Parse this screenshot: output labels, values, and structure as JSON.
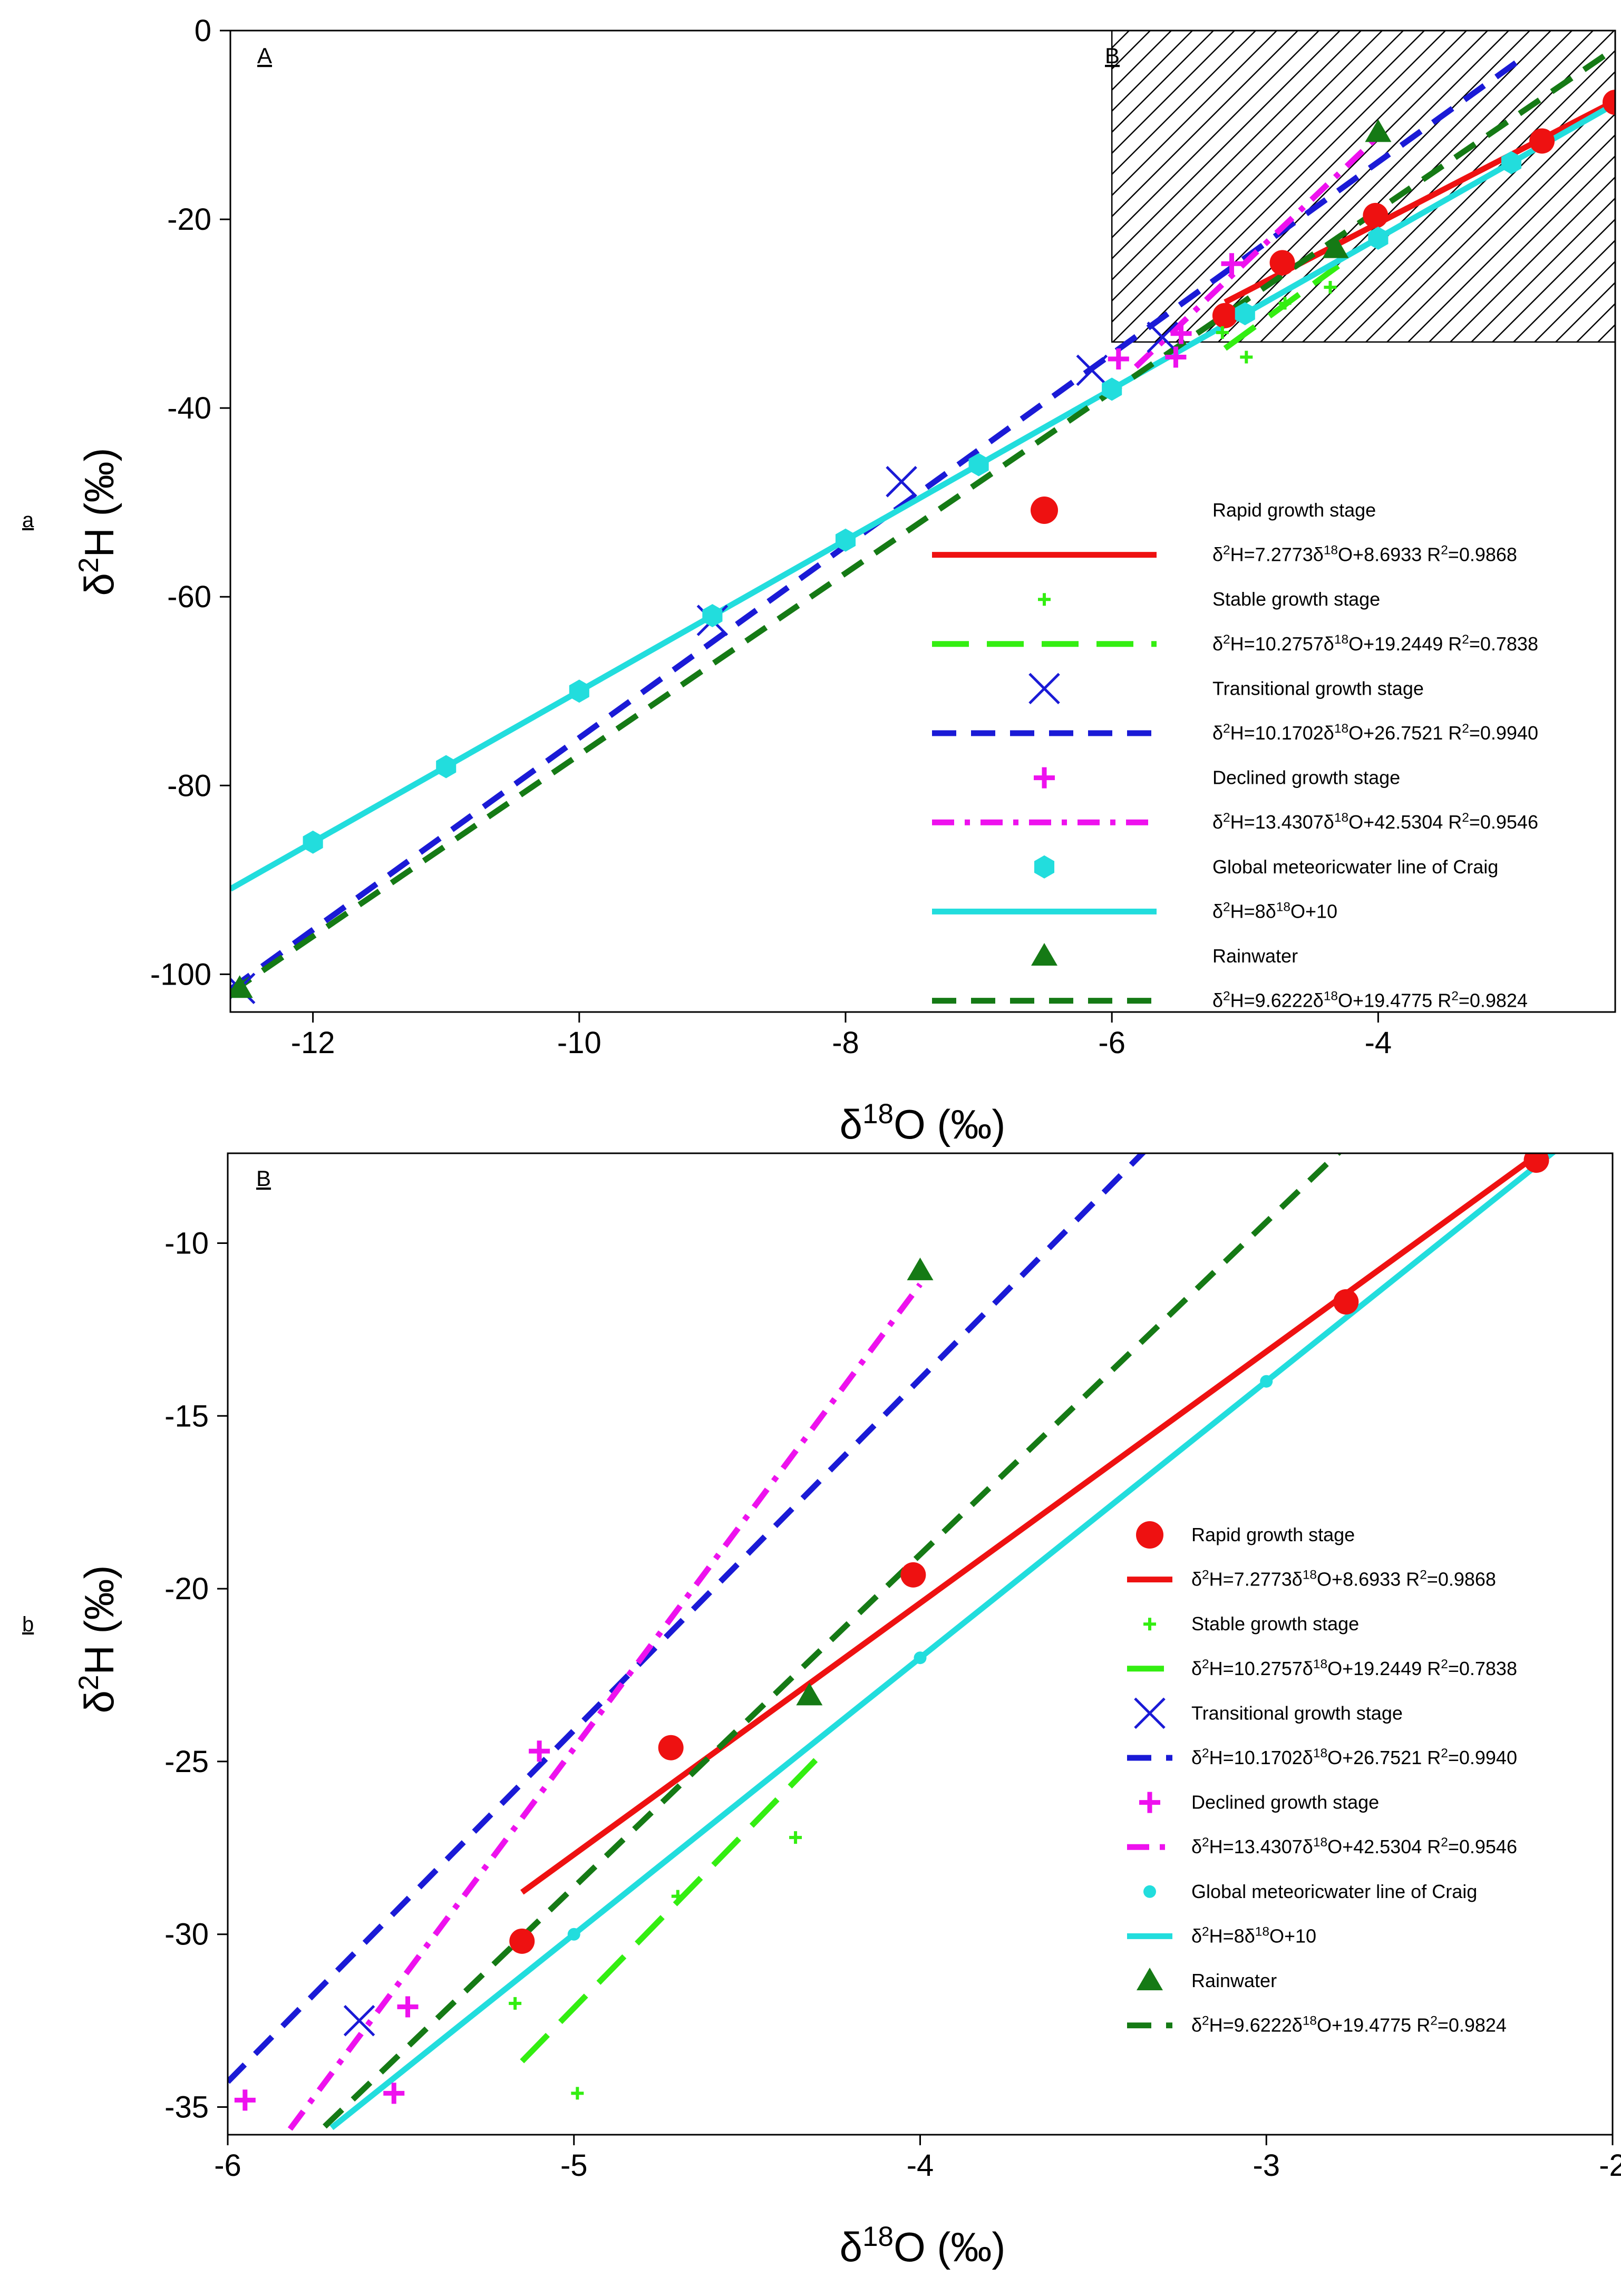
{
  "chart_data": [
    {
      "type": "scatter",
      "panel_tag": "a",
      "region_labels": [
        "A",
        "B"
      ],
      "xlabel": {
        "main": "δ",
        "sup": "18",
        "tail": "O (‰)"
      },
      "ylabel": {
        "main": "δ",
        "sup": "2",
        "tail": "H (‰)"
      },
      "xlim": [
        -12.62,
        -2.22
      ],
      "ylim": [
        -104,
        0
      ],
      "xticks": [
        -12,
        -10,
        -8,
        -6,
        -4
      ],
      "yticks": [
        -100,
        -80,
        -60,
        -40,
        -20,
        0
      ],
      "highlight_region": {
        "label": "B",
        "x": [
          -6,
          -2.22
        ],
        "y": [
          -33,
          0
        ],
        "pattern": "hatched"
      },
      "legend_placement": "lower-right",
      "series": [
        {
          "name": "Rapid growth stage",
          "kind": "points",
          "marker": "circle",
          "color": "#ee1111",
          "points": [
            [
              -5.15,
              -30.2
            ],
            [
              -4.72,
              -24.6
            ],
            [
              -4.02,
              -19.6
            ],
            [
              -2.77,
              -11.7
            ],
            [
              -2.22,
              -7.6
            ]
          ]
        },
        {
          "name": "δ2H=7.2773δ18O+8.6933 R2=0.9868",
          "kind": "line",
          "color": "#ee1111",
          "dash": "solid",
          "slope": 7.2773,
          "intercept": 8.6933,
          "xrange": [
            -5.15,
            -2.22
          ],
          "label_parts": [
            [
              "t",
              "δ"
            ],
            [
              "sup",
              "2"
            ],
            [
              "t",
              "H=7.2773δ"
            ],
            [
              "sup",
              "18"
            ],
            [
              "t",
              "O+8.6933 R"
            ],
            [
              "sup",
              "2"
            ],
            [
              "t",
              "=0.9868"
            ]
          ]
        },
        {
          "name": "Stable growth stage",
          "kind": "points",
          "marker": "small-plus",
          "color": "#33ee11",
          "points": [
            [
              -5.17,
              -32
            ],
            [
              -4.99,
              -34.6
            ],
            [
              -4.7,
              -28.9
            ],
            [
              -4.36,
              -27.2
            ]
          ]
        },
        {
          "name": "δ2H=10.2757δ18O+19.2449 R2=0.7838",
          "kind": "line",
          "color": "#33ee11",
          "dash": "longdash",
          "slope": 10.2757,
          "intercept": 19.2449,
          "xrange": [
            -5.15,
            -4.3
          ],
          "label_parts": [
            [
              "t",
              "δ"
            ],
            [
              "sup",
              "2"
            ],
            [
              "t",
              "H=10.2757δ"
            ],
            [
              "sup",
              "18"
            ],
            [
              "t",
              "O+19.2449 R"
            ],
            [
              "sup",
              "2"
            ],
            [
              "t",
              "=0.7838"
            ]
          ]
        },
        {
          "name": "Transitional growth stage",
          "kind": "points",
          "marker": "x",
          "color": "#1a1ad6",
          "points": [
            [
              -12.55,
              -101.5
            ],
            [
              -9.0,
              -62.5
            ],
            [
              -7.58,
              -47.8
            ],
            [
              -6.15,
              -36.0
            ],
            [
              -5.62,
              -32.5
            ]
          ]
        },
        {
          "name": "δ2H=10.1702δ18O+26.7521 R2=0.9940",
          "kind": "line",
          "color": "#1a1ad6",
          "dash": "dash",
          "slope": 10.1702,
          "intercept": 26.7521,
          "xrange": [
            -12.62,
            -2.9
          ],
          "label_parts": [
            [
              "t",
              "δ"
            ],
            [
              "sup",
              "2"
            ],
            [
              "t",
              "H=10.1702δ"
            ],
            [
              "sup",
              "18"
            ],
            [
              "t",
              "O+26.7521 R"
            ],
            [
              "sup",
              "2"
            ],
            [
              "t",
              "=0.9940"
            ]
          ]
        },
        {
          "name": "Declined growth stage",
          "kind": "points",
          "marker": "plus",
          "color": "#ee11ee",
          "points": [
            [
              -5.95,
              -34.8
            ],
            [
              -5.52,
              -34.6
            ],
            [
              -5.48,
              -32.1
            ],
            [
              -5.1,
              -24.7
            ]
          ]
        },
        {
          "name": "δ2H=13.4307δ18O+42.5304 R2=0.9546",
          "kind": "line",
          "color": "#ee11ee",
          "dash": "dashdot",
          "slope": 13.4307,
          "intercept": 42.5304,
          "xrange": [
            -5.82,
            -4.0
          ],
          "label_parts": [
            [
              "t",
              "δ"
            ],
            [
              "sup",
              "2"
            ],
            [
              "t",
              "H=13.4307δ"
            ],
            [
              "sup",
              "18"
            ],
            [
              "t",
              "O+42.5304 R"
            ],
            [
              "sup",
              "2"
            ],
            [
              "t",
              "=0.9546"
            ]
          ]
        },
        {
          "name": "Global meteoricwater line of Craig",
          "kind": "points",
          "marker": "hexagon",
          "color": "#22dddd",
          "points": [
            [
              -12,
              -86
            ],
            [
              -11,
              -78
            ],
            [
              -10,
              -70
            ],
            [
              -9,
              -62
            ],
            [
              -8,
              -54
            ],
            [
              -7,
              -46
            ],
            [
              -6,
              -38
            ],
            [
              -5,
              -30
            ],
            [
              -4,
              -22
            ],
            [
              -3,
              -14
            ]
          ]
        },
        {
          "name": "δ2H=8δ18O+10",
          "kind": "line",
          "color": "#22dddd",
          "dash": "solid",
          "slope": 8,
          "intercept": 10,
          "xrange": [
            -12.62,
            -2.22
          ],
          "label_parts": [
            [
              "t",
              "δ"
            ],
            [
              "sup",
              "2"
            ],
            [
              "t",
              "H=8δ"
            ],
            [
              "sup",
              "18"
            ],
            [
              "t",
              "O+10"
            ]
          ]
        },
        {
          "name": "Rainwater",
          "kind": "points",
          "marker": "triangle",
          "color": "#157a15",
          "points": [
            [
              -12.55,
              -101.5
            ],
            [
              -4.32,
              -23.1
            ],
            [
              -4.0,
              -10.8
            ]
          ]
        },
        {
          "name": "δ2H=9.6222δ18O+19.4775 R2=0.9824",
          "kind": "line",
          "color": "#157a15",
          "dash": "dash",
          "slope": 9.6222,
          "intercept": 19.4775,
          "xrange": [
            -12.62,
            -2.22
          ],
          "label_parts": [
            [
              "t",
              "δ"
            ],
            [
              "sup",
              "2"
            ],
            [
              "t",
              "H=9.6222δ"
            ],
            [
              "sup",
              "18"
            ],
            [
              "t",
              "O+19.4775 R"
            ],
            [
              "sup",
              "2"
            ],
            [
              "t",
              "=0.9824"
            ]
          ]
        }
      ]
    },
    {
      "type": "scatter",
      "panel_tag": "b",
      "region_labels": [
        "B"
      ],
      "xlabel": {
        "main": "δ",
        "sup": "18",
        "tail": "O (‰)"
      },
      "ylabel": {
        "main": "δ",
        "sup": "2",
        "tail": "H (‰)"
      },
      "xlim": [
        -6,
        -2
      ],
      "ylim": [
        -35.8,
        -7.4
      ],
      "xticks": [
        -6,
        -5,
        -4,
        -3,
        -2
      ],
      "yticks": [
        -35,
        -30,
        -25,
        -20,
        -15,
        -10
      ],
      "legend_placement": "lower-right",
      "series": [
        {
          "name": "Rapid growth stage",
          "kind": "points",
          "marker": "circle",
          "color": "#ee1111",
          "points": [
            [
              -5.15,
              -30.2
            ],
            [
              -4.72,
              -24.6
            ],
            [
              -4.02,
              -19.6
            ],
            [
              -2.77,
              -11.7
            ],
            [
              -2.22,
              -7.6
            ]
          ]
        },
        {
          "name": "δ2H=7.2773δ18O+8.6933 R2=0.9868",
          "kind": "line",
          "color": "#ee1111",
          "dash": "solid",
          "slope": 7.2773,
          "intercept": 8.6933,
          "xrange": [
            -5.15,
            -2.22
          ],
          "label_parts": [
            [
              "t",
              "δ"
            ],
            [
              "sup",
              "2"
            ],
            [
              "t",
              "H=7.2773δ"
            ],
            [
              "sup",
              "18"
            ],
            [
              "t",
              "O+8.6933 R"
            ],
            [
              "sup",
              "2"
            ],
            [
              "t",
              "=0.9868"
            ]
          ]
        },
        {
          "name": "Stable growth stage",
          "kind": "points",
          "marker": "small-plus",
          "color": "#33ee11",
          "points": [
            [
              -5.17,
              -32
            ],
            [
              -4.99,
              -34.6
            ],
            [
              -4.7,
              -28.9
            ],
            [
              -4.36,
              -27.2
            ]
          ]
        },
        {
          "name": "δ2H=10.2757δ18O+19.2449 R2=0.7838",
          "kind": "line",
          "color": "#33ee11",
          "dash": "longdash",
          "slope": 10.2757,
          "intercept": 19.2449,
          "xrange": [
            -5.15,
            -4.3
          ],
          "label_parts": [
            [
              "t",
              "δ"
            ],
            [
              "sup",
              "2"
            ],
            [
              "t",
              "H=10.2757δ"
            ],
            [
              "sup",
              "18"
            ],
            [
              "t",
              "O+19.2449 R"
            ],
            [
              "sup",
              "2"
            ],
            [
              "t",
              "=0.7838"
            ]
          ]
        },
        {
          "name": "Transitional growth stage",
          "kind": "points",
          "marker": "x",
          "color": "#1a1ad6",
          "points": [
            [
              -5.62,
              -32.5
            ]
          ]
        },
        {
          "name": "δ2H=10.1702δ18O+26.7521 R2=0.9940",
          "kind": "line",
          "color": "#1a1ad6",
          "dash": "dash",
          "slope": 10.1702,
          "intercept": 26.7521,
          "xrange": [
            -6,
            -2.9
          ],
          "label_parts": [
            [
              "t",
              "δ"
            ],
            [
              "sup",
              "2"
            ],
            [
              "t",
              "H=10.1702δ"
            ],
            [
              "sup",
              "18"
            ],
            [
              "t",
              "O+26.7521 R"
            ],
            [
              "sup",
              "2"
            ],
            [
              "t",
              "=0.9940"
            ]
          ]
        },
        {
          "name": "Declined growth stage",
          "kind": "points",
          "marker": "plus",
          "color": "#ee11ee",
          "points": [
            [
              -5.95,
              -34.8
            ],
            [
              -5.52,
              -34.6
            ],
            [
              -5.48,
              -32.1
            ],
            [
              -5.1,
              -24.7
            ]
          ]
        },
        {
          "name": "δ2H=13.4307δ18O+42.5304 R2=0.9546",
          "kind": "line",
          "color": "#ee11ee",
          "dash": "dashdot",
          "slope": 13.4307,
          "intercept": 42.5304,
          "xrange": [
            -5.82,
            -4.0
          ],
          "label_parts": [
            [
              "t",
              "δ"
            ],
            [
              "sup",
              "2"
            ],
            [
              "t",
              "H=13.4307δ"
            ],
            [
              "sup",
              "18"
            ],
            [
              "t",
              "O+42.5304 R"
            ],
            [
              "sup",
              "2"
            ],
            [
              "t",
              "=0.9546"
            ]
          ]
        },
        {
          "name": "Global meteoricwater line of Craig",
          "kind": "points",
          "marker": "dot",
          "color": "#22dddd",
          "points": [
            [
              -5,
              -30
            ],
            [
              -4,
              -22
            ],
            [
              -3,
              -14
            ]
          ]
        },
        {
          "name": "δ2H=8δ18O+10",
          "kind": "line",
          "color": "#22dddd",
          "dash": "solid",
          "slope": 8,
          "intercept": 10,
          "xrange": [
            -5.7,
            -2.1
          ],
          "label_parts": [
            [
              "t",
              "δ"
            ],
            [
              "sup",
              "2"
            ],
            [
              "t",
              "H=8δ"
            ],
            [
              "sup",
              "18"
            ],
            [
              "t",
              "O+10"
            ]
          ]
        },
        {
          "name": "Rainwater",
          "kind": "points",
          "marker": "triangle",
          "color": "#157a15",
          "points": [
            [
              -4.32,
              -23.1
            ],
            [
              -4.0,
              -10.8
            ]
          ]
        },
        {
          "name": "δ2H=9.6222δ18O+19.4775 R2=0.9824",
          "kind": "line",
          "color": "#157a15",
          "dash": "dash",
          "slope": 9.6222,
          "intercept": 19.4775,
          "xrange": [
            -5.72,
            -2.2
          ],
          "label_parts": [
            [
              "t",
              "δ"
            ],
            [
              "sup",
              "2"
            ],
            [
              "t",
              "H=9.6222δ"
            ],
            [
              "sup",
              "18"
            ],
            [
              "t",
              "O+19.4775 R"
            ],
            [
              "sup",
              "2"
            ],
            [
              "t",
              "=0.9824"
            ]
          ]
        }
      ]
    }
  ]
}
